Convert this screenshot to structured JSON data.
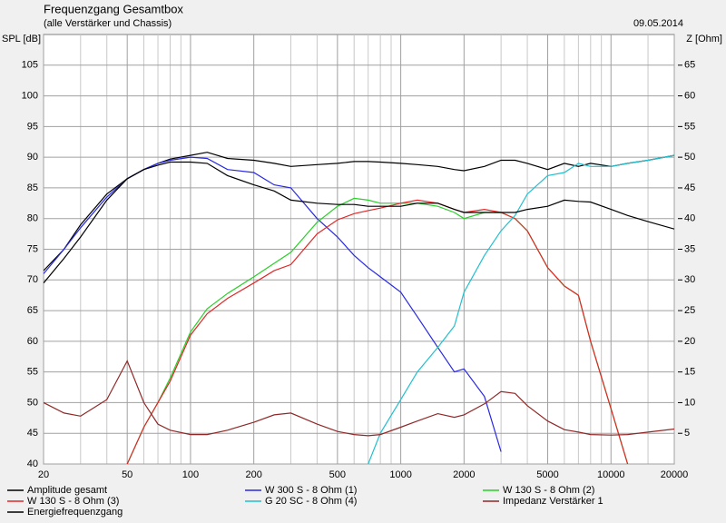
{
  "chart_data": {
    "type": "line",
    "title": "Frequenzgang Gesamtbox",
    "subtitle": "(alle Verstärker und Chassis)",
    "date": "09.05.2014",
    "y_label": "SPL [dB]",
    "y2_label": "Z [Ohm]",
    "x_scale": "log",
    "grid": true,
    "x": [
      20,
      25,
      30,
      40,
      50,
      60,
      70,
      80,
      100,
      120,
      150,
      200,
      250,
      300,
      400,
      500,
      600,
      700,
      800,
      1000,
      1200,
      1500,
      1800,
      2000,
      2500,
      3000,
      3500,
      4000,
      5000,
      6000,
      7000,
      8000,
      10000,
      12000,
      15000,
      20000
    ],
    "xlim": [
      20,
      20000
    ],
    "xticks": [
      20,
      50,
      100,
      200,
      500,
      1000,
      2000,
      5000,
      10000,
      20000
    ],
    "x_minor_ticks": [
      30,
      40,
      60,
      70,
      80,
      90,
      300,
      400,
      600,
      700,
      800,
      900,
      3000,
      4000,
      6000,
      7000,
      8000,
      9000,
      15000
    ],
    "ylim": [
      40,
      110
    ],
    "yticks": [
      40,
      45,
      50,
      55,
      60,
      65,
      70,
      75,
      80,
      85,
      90,
      95,
      100,
      105
    ],
    "y2lim": [
      0,
      70
    ],
    "y2ticks": [
      5,
      10,
      15,
      20,
      25,
      30,
      35,
      40,
      45,
      50,
      55,
      60,
      65
    ],
    "series": [
      {
        "name": "Amplitude gesamt",
        "color": "#000000",
        "values": [
          71.5,
          75,
          79,
          84,
          86.5,
          88,
          89,
          89.7,
          90.3,
          90.8,
          89.8,
          89.5,
          89,
          88.5,
          88.8,
          89,
          89.3,
          89.3,
          89.2,
          89,
          88.8,
          88.5,
          88,
          87.8,
          88.5,
          89.5,
          89.5,
          89,
          88,
          89,
          88.5,
          89,
          88.5,
          89,
          89.5,
          90.3
        ]
      },
      {
        "name": "W 300 S - 8 Ohm (1)",
        "color": "#2828e0",
        "values": [
          71,
          75,
          78.5,
          83.5,
          86.5,
          88,
          89,
          89.5,
          90,
          89.8,
          88,
          87.5,
          85.5,
          85,
          80,
          77,
          74,
          72,
          70.5,
          68,
          64,
          59,
          55,
          55.5,
          51,
          42,
          null,
          null,
          null,
          null,
          null,
          null,
          null,
          null,
          null,
          null
        ]
      },
      {
        "name": "W 130 S - 8 Ohm (2)",
        "color": "#28d028",
        "values": [
          null,
          null,
          null,
          null,
          40,
          46,
          50,
          54,
          61.5,
          65.3,
          67.8,
          70.5,
          72.7,
          74.5,
          79.4,
          82,
          83.3,
          83,
          82.5,
          82.5,
          82.5,
          82,
          81,
          80,
          81,
          81,
          80,
          78,
          72,
          69,
          67.5,
          60,
          49,
          40,
          null,
          null
        ]
      },
      {
        "name": "W 130 S - 8 Ohm (3)",
        "color": "#e02828",
        "values": [
          null,
          null,
          null,
          null,
          40,
          46,
          50,
          53.5,
          61,
          64.5,
          67,
          69.5,
          71.5,
          72.5,
          77.5,
          79.8,
          80.8,
          81.3,
          81.7,
          82.5,
          83,
          82.5,
          81.5,
          81,
          81.5,
          81,
          80,
          78,
          72,
          69,
          67.5,
          60,
          49,
          40,
          null,
          null
        ]
      },
      {
        "name": "G 20 SC - 8 Ohm (4)",
        "color": "#20c0d0",
        "values": [
          null,
          null,
          null,
          null,
          null,
          null,
          null,
          null,
          null,
          null,
          null,
          null,
          null,
          null,
          null,
          null,
          null,
          40,
          45,
          50.5,
          55,
          59,
          62.5,
          68,
          74,
          78,
          80.5,
          84,
          87,
          87.5,
          89,
          88.5,
          88.5,
          89,
          89.5,
          90.3
        ]
      },
      {
        "name": "Impedanz Verstärker 1",
        "color": "#902828",
        "axis": "y2",
        "values": [
          10,
          8.3,
          7.8,
          10.5,
          16.8,
          10,
          6.5,
          5.5,
          4.8,
          4.8,
          5.5,
          6.8,
          8,
          8.3,
          6.5,
          5.3,
          4.8,
          4.6,
          4.8,
          6,
          7,
          8.2,
          7.6,
          8,
          9.8,
          11.8,
          11.5,
          9.5,
          7,
          5.6,
          5.2,
          4.8,
          4.7,
          4.8,
          5.2,
          5.7
        ]
      },
      {
        "name": "Energiefrequenzgang",
        "color": "#000000",
        "values": [
          69.5,
          73.5,
          77,
          83,
          86.5,
          88,
          88.7,
          89.2,
          89.2,
          89,
          87,
          85.5,
          84.5,
          83,
          82.5,
          82.3,
          82.3,
          82,
          82,
          82,
          82.5,
          82.5,
          81.5,
          81,
          81,
          81,
          81,
          81.5,
          82,
          83,
          82.8,
          82.7,
          81.5,
          80.5,
          79.5,
          78.3
        ]
      }
    ]
  }
}
